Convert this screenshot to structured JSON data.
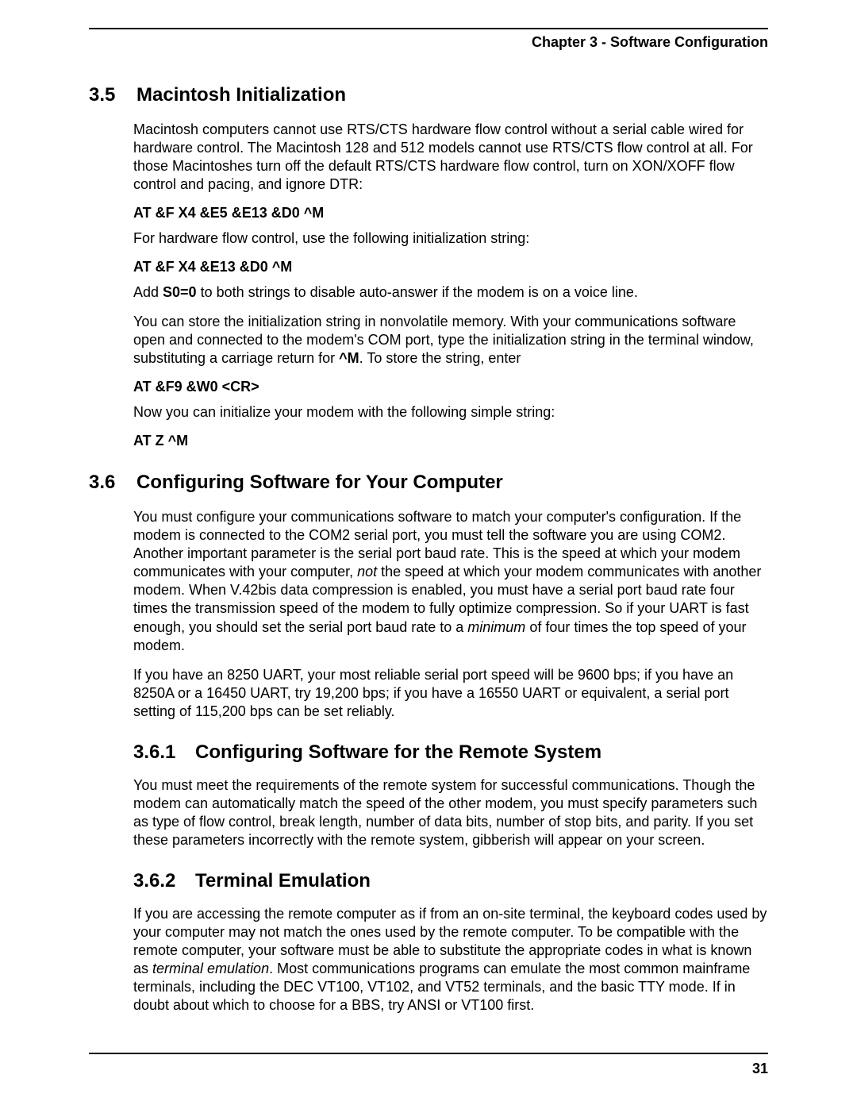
{
  "header": {
    "chapter": "Chapter 3 - Software Configuration"
  },
  "s35": {
    "num": "3.5",
    "title": "Macintosh Initialization",
    "p1": "Macintosh computers cannot use RTS/CTS hardware flow control without a serial cable wired for hardware control. The Macintosh 128 and 512 models cannot use RTS/CTS flow control at all. For those Macintoshes turn off the default RTS/CTS hardware flow control, turn on XON/XOFF flow control and pacing, and ignore DTR:",
    "cmd1": "AT &F X4 &E5 &E13 &D0 ^M",
    "p2": "For hardware flow control, use the following initialization string:",
    "cmd2": "AT &F X4 &E13 &D0 ^M",
    "p3a": "Add ",
    "p3b": "S0=0",
    "p3c": " to both strings to disable auto-answer if the modem is on a voice line.",
    "p4a": "You can store the initialization string in nonvolatile memory. With your communications software open and connected to the modem's COM port, type the initialization string in the terminal window, substituting a carriage return for ",
    "p4b": "^M",
    "p4c": ". To store the string, enter",
    "cmd3": "AT &F9 &W0 <CR>",
    "p5": "Now you can initialize your modem with the following simple string:",
    "cmd4": "AT Z ^M"
  },
  "s36": {
    "num": "3.6",
    "title": "Configuring Software for Your Computer",
    "p1a": "You must configure your communications software to match your computer's configuration. If the modem is connected to the COM2 serial port, you must tell the software you are using COM2. Another important parameter is the serial port baud rate. This is the speed at which your modem communicates with your computer, ",
    "p1b": "not",
    "p1c": " the speed at which your modem communicates with another modem. When V.42bis data compression is enabled, you must have a serial port baud rate four times the transmission speed of the modem to fully optimize compression. So if your UART is fast enough, you should set the serial port baud rate to a ",
    "p1d": "minimum",
    "p1e": " of four times the top speed of your modem.",
    "p2": "If you have an 8250 UART, your most reliable serial port speed will be 9600 bps; if you have an 8250A or a 16450 UART, try 19,200 bps; if you have a 16550 UART or equivalent, a serial port setting of 115,200 bps can be set reliably."
  },
  "s361": {
    "num": "3.6.1",
    "title": "Configuring Software for the Remote System",
    "p1": "You must meet the requirements of the remote system for successful communications. Though the modem can automatically match the speed of the other modem, you must specify parameters such as type of flow control, break length, number of data bits, number of stop bits, and parity. If you set these parameters incorrectly with the remote system, gibberish will appear on your screen."
  },
  "s362": {
    "num": "3.6.2",
    "title": "Terminal Emulation",
    "p1a": "If you are accessing the remote computer as if from an on-site terminal, the keyboard codes used by your computer may not match the ones used by the remote computer. To be compatible with the remote computer, your software must be able to substitute the appropriate codes in what is known as ",
    "p1b": "terminal emulation",
    "p1c": ". Most communications programs can emulate the most common mainframe terminals, including the DEC VT100, VT102, and VT52 terminals, and the basic TTY mode. If in doubt about which to choose for a BBS, try ANSI or VT100 first."
  },
  "footer": {
    "page": "31"
  }
}
